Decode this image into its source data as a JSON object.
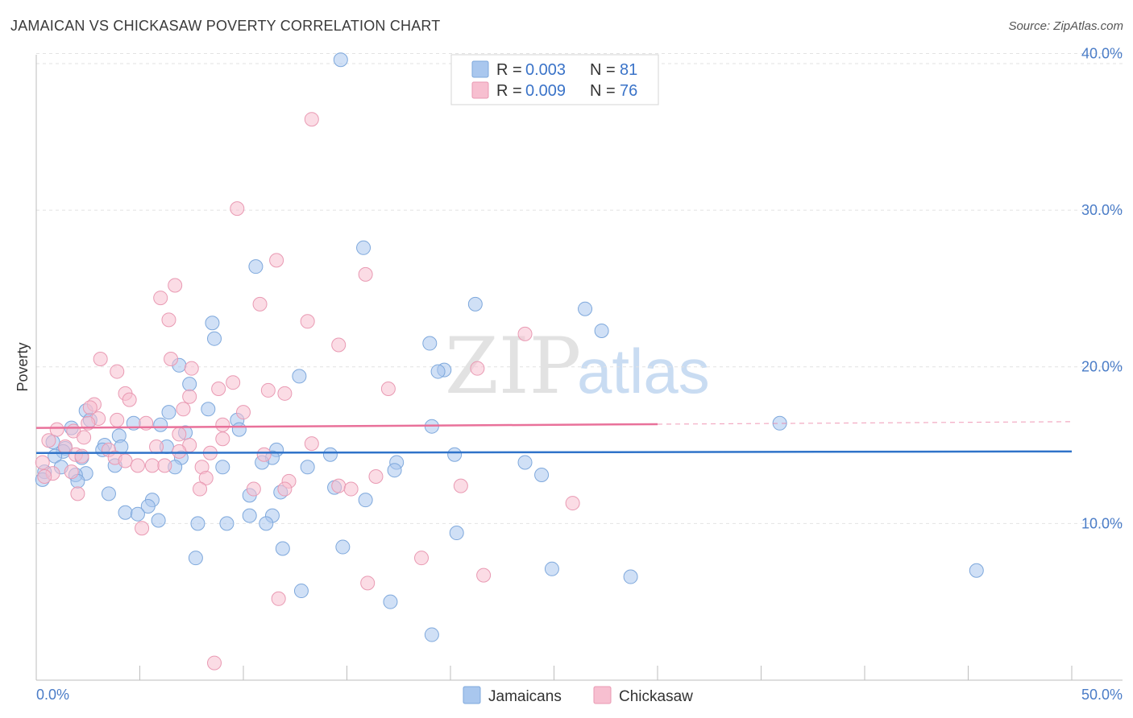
{
  "title": "JAMAICAN VS CHICKASAW POVERTY CORRELATION CHART",
  "source": "Source: ZipAtlas.com",
  "watermark": {
    "zip": "ZIP",
    "atlas": "atlas"
  },
  "legend_top": [
    {
      "r_label": "R = ",
      "r_value": "0.003",
      "n_label": "N = ",
      "n_value": "81",
      "color": "#a9c7ee",
      "stroke": "#7ea8dc"
    },
    {
      "r_label": "R = ",
      "r_value": "0.009",
      "n_label": "N = ",
      "n_value": "76",
      "color": "#f7bfd0",
      "stroke": "#e99ab3"
    }
  ],
  "legend_bottom": [
    {
      "label": "Jamaicans",
      "color": "#a9c7ee",
      "stroke": "#7ea8dc"
    },
    {
      "label": "Chickasaw",
      "color": "#f7bfd0",
      "stroke": "#e99ab3"
    }
  ],
  "chart_data": {
    "type": "scatter",
    "title": "JAMAICAN VS CHICKASAW POVERTY CORRELATION CHART",
    "xlabel": "",
    "ylabel": "Poverty",
    "xlim": [
      0,
      50
    ],
    "ylim": [
      0,
      41
    ],
    "x_tick_labels": [
      "0.0%",
      "50.0%"
    ],
    "y_ticks": [
      10,
      20,
      30,
      40
    ],
    "y_tick_labels": [
      "10.0%",
      "20.0%",
      "30.0%",
      "40.0%"
    ],
    "grid": true,
    "series": [
      {
        "name": "Jamaicans",
        "color": "#a9c7ee",
        "stroke": "#7ea8dc",
        "line_color": "#2f73c9",
        "trend": {
          "x": [
            0,
            50
          ],
          "y": [
            14.5,
            14.6
          ],
          "dashed_from": null
        },
        "points": [
          [
            14.7,
            39.6
          ],
          [
            15.8,
            27.6
          ],
          [
            10.6,
            26.4
          ],
          [
            21.2,
            24.0
          ],
          [
            26.5,
            23.7
          ],
          [
            8.5,
            22.8
          ],
          [
            27.3,
            22.3
          ],
          [
            8.6,
            21.8
          ],
          [
            19.0,
            21.5
          ],
          [
            6.9,
            20.1
          ],
          [
            19.7,
            19.8
          ],
          [
            19.4,
            19.7
          ],
          [
            12.7,
            19.4
          ],
          [
            7.4,
            18.9
          ],
          [
            2.4,
            17.2
          ],
          [
            8.3,
            17.3
          ],
          [
            6.4,
            17.1
          ],
          [
            2.6,
            16.6
          ],
          [
            4.7,
            16.4
          ],
          [
            9.7,
            16.6
          ],
          [
            6.0,
            16.3
          ],
          [
            35.9,
            16.4
          ],
          [
            19.1,
            16.2
          ],
          [
            1.7,
            16.1
          ],
          [
            9.8,
            16.0
          ],
          [
            7.2,
            15.8
          ],
          [
            4.0,
            15.6
          ],
          [
            0.8,
            15.2
          ],
          [
            3.3,
            15.0
          ],
          [
            1.4,
            14.8
          ],
          [
            4.1,
            14.9
          ],
          [
            6.3,
            14.9
          ],
          [
            3.2,
            14.7
          ],
          [
            11.6,
            14.7
          ],
          [
            1.3,
            14.6
          ],
          [
            7.0,
            14.2
          ],
          [
            11.4,
            14.2
          ],
          [
            14.2,
            14.4
          ],
          [
            20.2,
            14.4
          ],
          [
            0.9,
            14.3
          ],
          [
            2.2,
            14.2
          ],
          [
            10.9,
            13.9
          ],
          [
            17.4,
            13.9
          ],
          [
            23.6,
            13.9
          ],
          [
            3.8,
            13.7
          ],
          [
            1.2,
            13.6
          ],
          [
            6.7,
            13.6
          ],
          [
            9.0,
            13.6
          ],
          [
            13.1,
            13.6
          ],
          [
            17.3,
            13.4
          ],
          [
            0.4,
            13.3
          ],
          [
            2.4,
            13.2
          ],
          [
            1.9,
            13.1
          ],
          [
            24.4,
            13.1
          ],
          [
            0.3,
            12.8
          ],
          [
            2.0,
            12.7
          ],
          [
            14.4,
            12.3
          ],
          [
            11.8,
            12.0
          ],
          [
            3.5,
            11.9
          ],
          [
            10.3,
            11.8
          ],
          [
            15.9,
            11.5
          ],
          [
            5.6,
            11.5
          ],
          [
            5.4,
            11.1
          ],
          [
            4.3,
            10.7
          ],
          [
            4.9,
            10.6
          ],
          [
            10.3,
            10.5
          ],
          [
            11.4,
            10.5
          ],
          [
            5.9,
            10.2
          ],
          [
            7.8,
            10.0
          ],
          [
            9.2,
            10.0
          ],
          [
            11.1,
            10.0
          ],
          [
            20.3,
            9.4
          ],
          [
            11.9,
            8.4
          ],
          [
            14.8,
            8.5
          ],
          [
            7.7,
            7.8
          ],
          [
            24.9,
            7.1
          ],
          [
            28.7,
            6.6
          ],
          [
            45.4,
            7.0
          ],
          [
            12.8,
            5.7
          ],
          [
            17.1,
            5.0
          ],
          [
            19.1,
            2.9
          ]
        ]
      },
      {
        "name": "Chickasaw",
        "color": "#f7bfd0",
        "stroke": "#e99ab3",
        "line_color": "#e9719a",
        "trend": {
          "x": [
            0,
            50
          ],
          "y": [
            16.1,
            16.5
          ],
          "dashed_from": 30
        },
        "points": [
          [
            13.3,
            35.8
          ],
          [
            9.7,
            30.1
          ],
          [
            11.6,
            26.8
          ],
          [
            15.9,
            25.9
          ],
          [
            6.7,
            25.2
          ],
          [
            6.0,
            24.4
          ],
          [
            10.8,
            24.0
          ],
          [
            6.4,
            23.0
          ],
          [
            13.1,
            22.9
          ],
          [
            23.6,
            22.1
          ],
          [
            14.6,
            21.4
          ],
          [
            3.1,
            20.5
          ],
          [
            6.5,
            20.5
          ],
          [
            7.5,
            19.9
          ],
          [
            3.9,
            19.7
          ],
          [
            21.3,
            19.9
          ],
          [
            9.5,
            19.0
          ],
          [
            8.8,
            18.6
          ],
          [
            11.2,
            18.5
          ],
          [
            17.0,
            18.6
          ],
          [
            4.3,
            18.3
          ],
          [
            12.0,
            18.3
          ],
          [
            7.4,
            18.1
          ],
          [
            4.5,
            17.9
          ],
          [
            2.8,
            17.6
          ],
          [
            2.6,
            17.4
          ],
          [
            7.1,
            17.3
          ],
          [
            10.0,
            17.1
          ],
          [
            3.0,
            16.7
          ],
          [
            5.3,
            16.4
          ],
          [
            3.9,
            16.6
          ],
          [
            9.0,
            16.3
          ],
          [
            2.5,
            16.4
          ],
          [
            1.0,
            16.0
          ],
          [
            1.8,
            15.9
          ],
          [
            6.9,
            15.7
          ],
          [
            2.3,
            15.5
          ],
          [
            9.0,
            15.4
          ],
          [
            0.6,
            15.3
          ],
          [
            13.3,
            15.1
          ],
          [
            7.4,
            15.0
          ],
          [
            1.4,
            14.9
          ],
          [
            3.5,
            14.7
          ],
          [
            5.8,
            14.9
          ],
          [
            6.9,
            14.6
          ],
          [
            8.4,
            14.5
          ],
          [
            1.9,
            14.4
          ],
          [
            2.2,
            14.3
          ],
          [
            11.0,
            14.4
          ],
          [
            3.8,
            14.2
          ],
          [
            4.3,
            14.0
          ],
          [
            0.3,
            13.9
          ],
          [
            4.9,
            13.7
          ],
          [
            5.6,
            13.7
          ],
          [
            6.2,
            13.7
          ],
          [
            8.0,
            13.6
          ],
          [
            1.7,
            13.3
          ],
          [
            0.8,
            13.2
          ],
          [
            0.4,
            13.0
          ],
          [
            8.2,
            12.9
          ],
          [
            16.4,
            13.0
          ],
          [
            12.2,
            12.7
          ],
          [
            14.6,
            12.4
          ],
          [
            20.5,
            12.4
          ],
          [
            10.5,
            12.2
          ],
          [
            12.0,
            12.2
          ],
          [
            15.2,
            12.2
          ],
          [
            7.9,
            12.2
          ],
          [
            2.0,
            11.9
          ],
          [
            25.9,
            11.3
          ],
          [
            5.1,
            9.7
          ],
          [
            18.6,
            7.8
          ],
          [
            21.6,
            6.7
          ],
          [
            16.0,
            6.2
          ],
          [
            11.7,
            5.2
          ],
          [
            8.6,
            1.1
          ]
        ]
      }
    ]
  }
}
